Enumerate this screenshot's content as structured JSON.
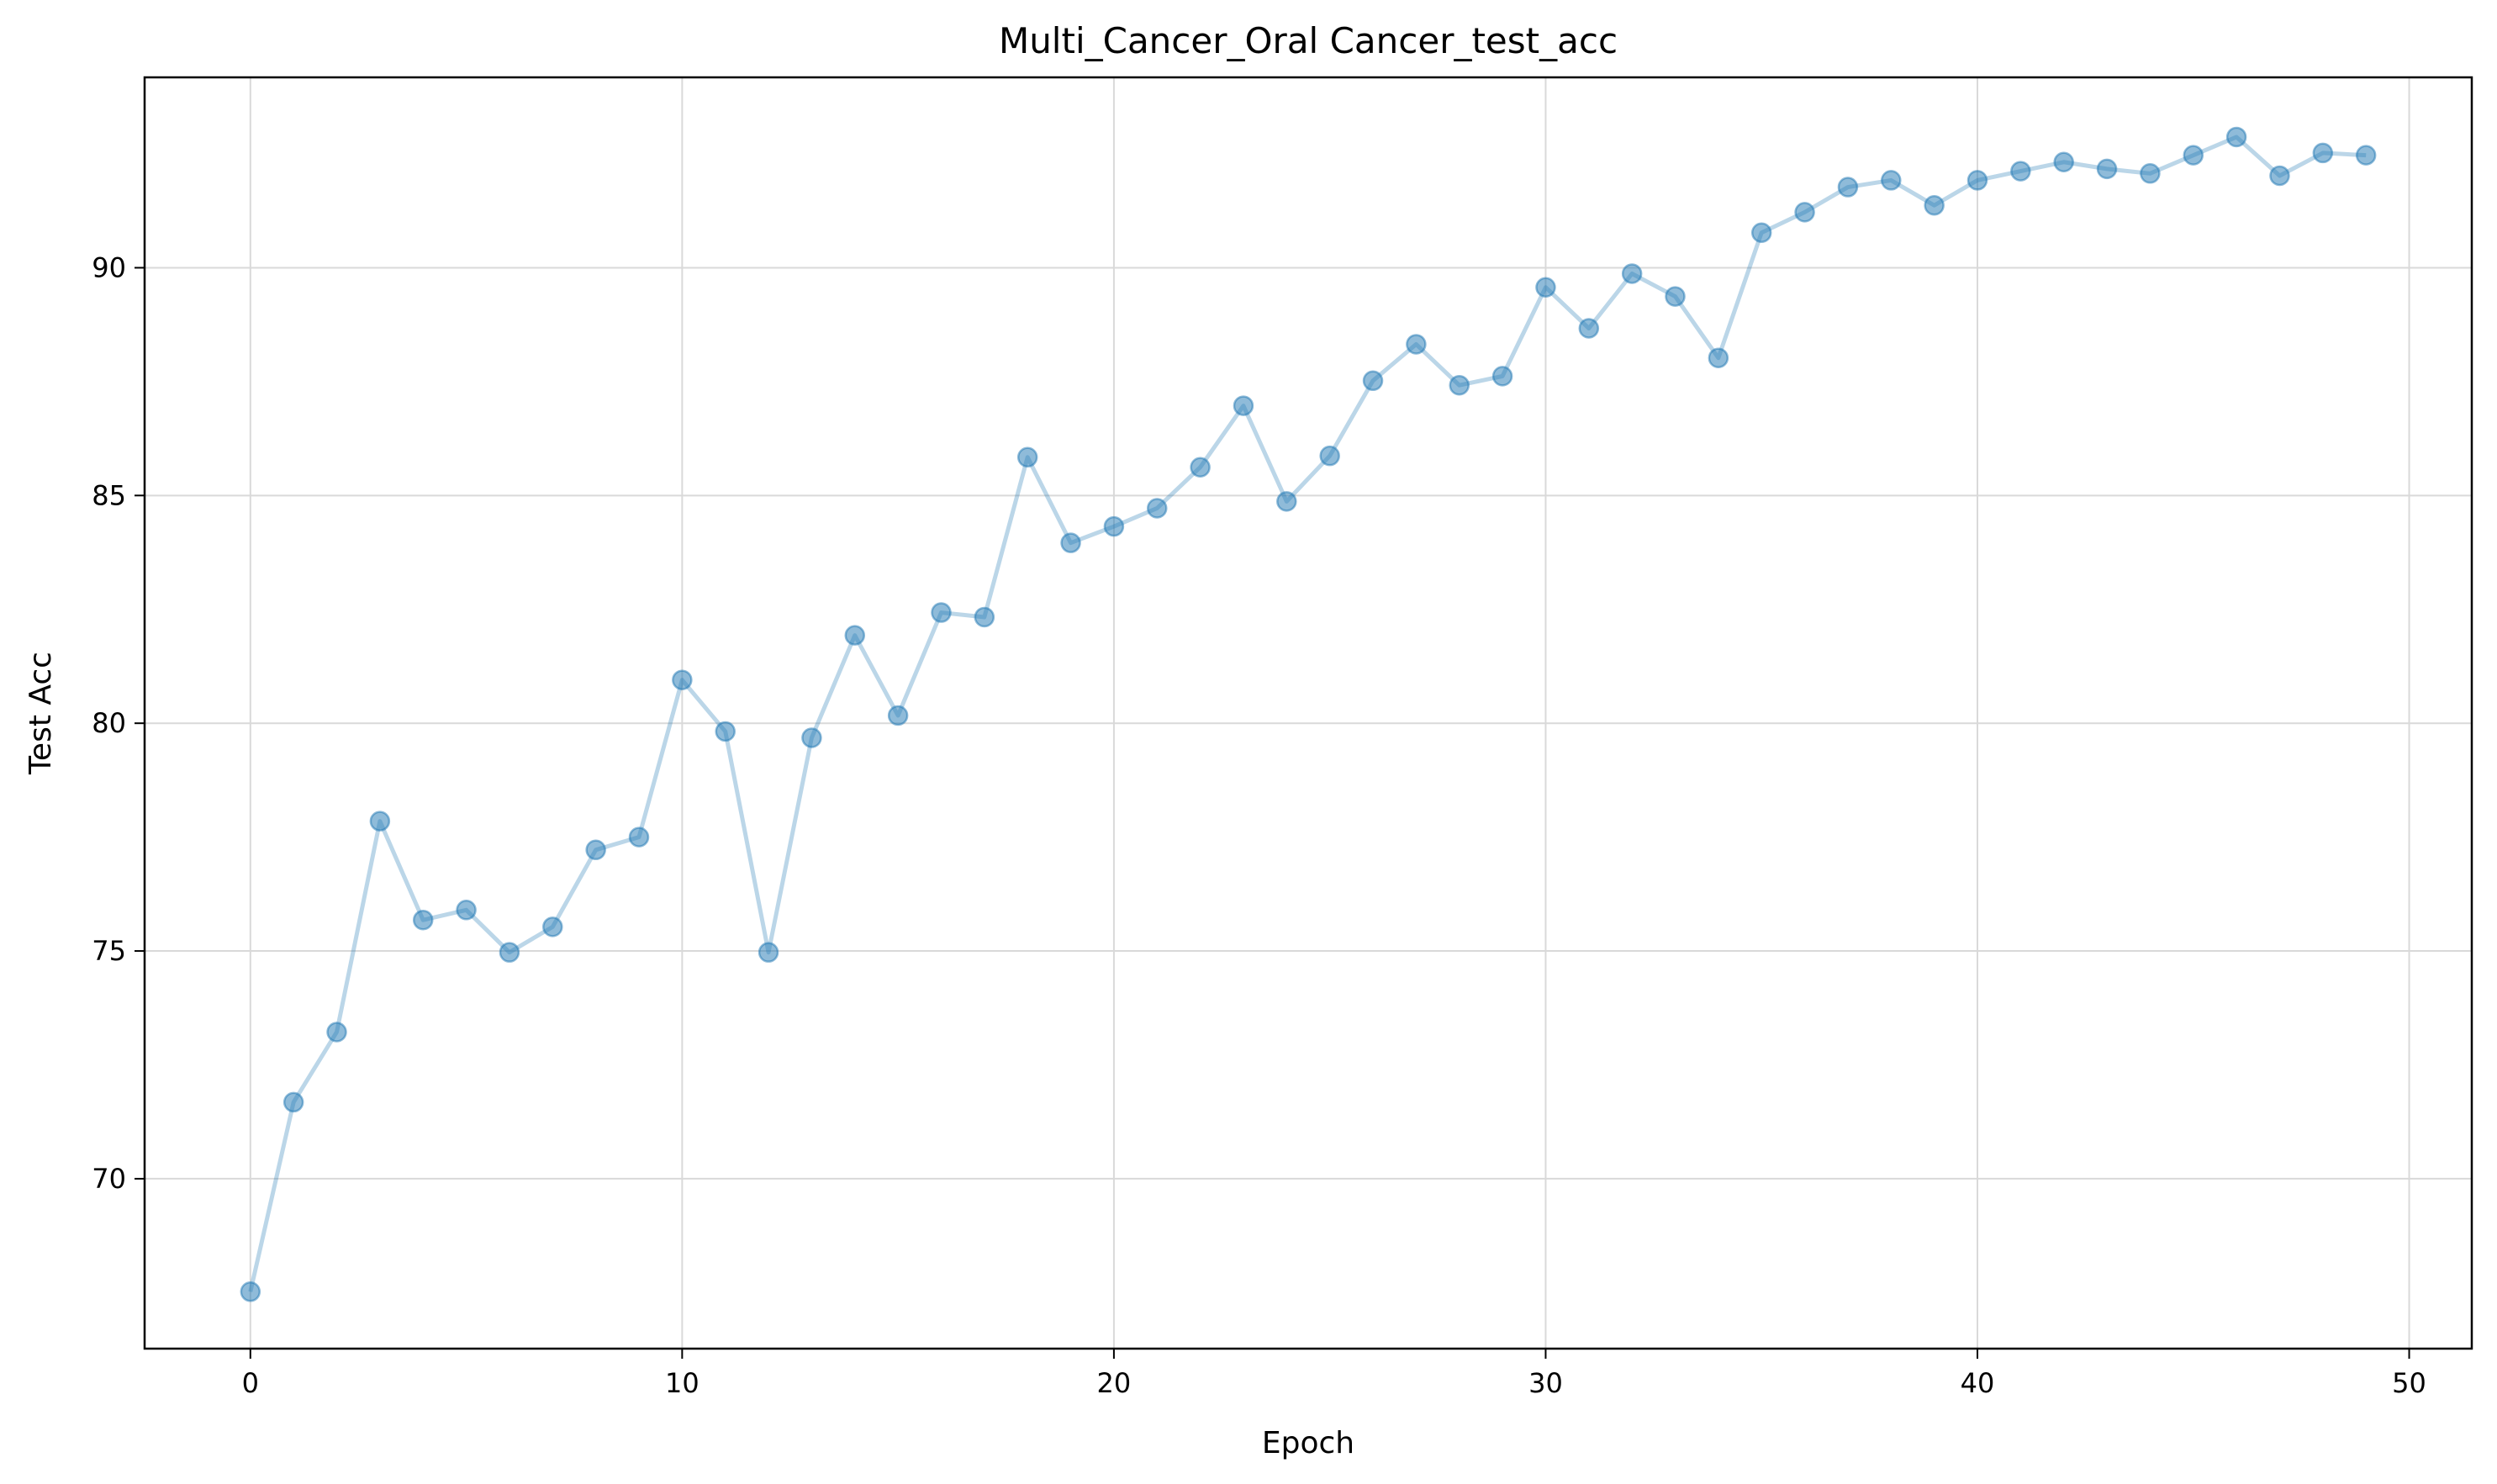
{
  "chart_data": {
    "type": "line",
    "title": "Multi_Cancer_Oral Cancer_test_acc",
    "xlabel": "Epoch",
    "ylabel": "Test Acc",
    "xlim": [
      -2.45,
      51.45
    ],
    "ylim": [
      66.27,
      94.18
    ],
    "xticks": [
      0,
      10,
      20,
      30,
      40,
      50
    ],
    "yticks": [
      70,
      75,
      80,
      85,
      90
    ],
    "grid": true,
    "colors": {
      "line": "#1f77b4",
      "marker": "#1f77b4",
      "grid": "#d9d9d9",
      "frame": "#000000"
    },
    "series": [
      {
        "x": [
          0,
          1,
          2,
          3,
          4,
          5,
          6,
          7,
          8,
          9,
          10,
          11,
          12,
          13,
          14,
          15,
          16,
          17,
          18,
          19,
          20,
          21,
          22,
          23,
          24,
          25,
          26,
          27,
          28,
          29,
          30,
          31,
          32,
          33,
          34,
          35,
          36,
          37,
          38,
          39,
          40,
          41,
          42,
          43,
          44,
          45,
          46,
          47,
          48,
          49
        ],
        "y": [
          67.52,
          71.68,
          73.22,
          77.85,
          75.68,
          75.9,
          74.97,
          75.53,
          77.22,
          77.5,
          80.95,
          79.82,
          74.97,
          79.68,
          81.93,
          80.17,
          82.43,
          82.33,
          85.84,
          83.96,
          84.32,
          84.72,
          85.62,
          86.97,
          84.87,
          85.87,
          87.52,
          88.32,
          87.42,
          87.62,
          89.57,
          88.67,
          89.87,
          89.37,
          88.02,
          90.77,
          91.22,
          91.77,
          91.92,
          91.37,
          91.92,
          92.12,
          92.32,
          92.17,
          92.07,
          92.47,
          92.87,
          92.02,
          92.52,
          92.47
        ]
      }
    ]
  }
}
